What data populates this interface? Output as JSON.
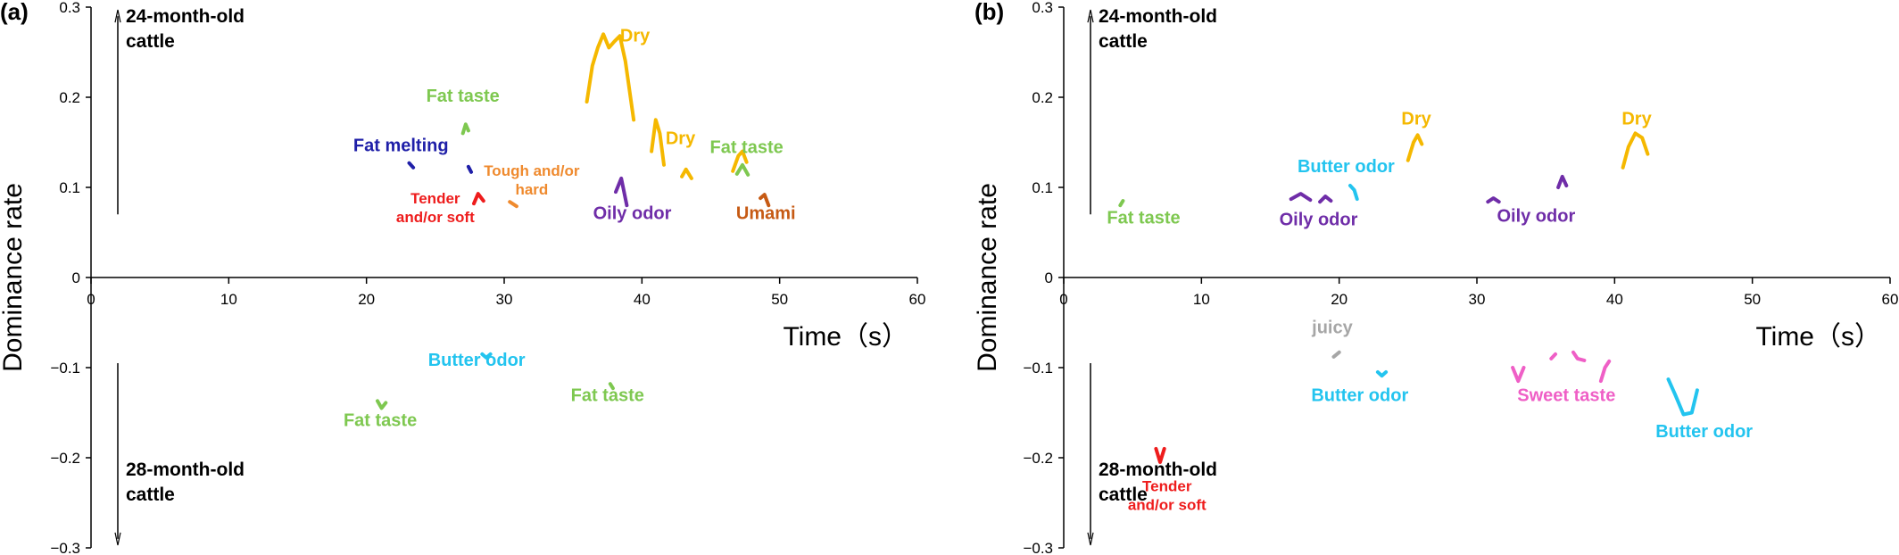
{
  "chart_data": [
    {
      "type": "line",
      "panel_label": "(a)",
      "xlabel": "Time（s）",
      "ylabel": "Dominance rate",
      "xlim": [
        0,
        60
      ],
      "ylim": [
        -0.3,
        0.3
      ],
      "x_ticks": [
        0,
        10,
        20,
        30,
        40,
        50,
        60
      ],
      "y_ticks": [
        0.3,
        0.2,
        0.1,
        0,
        -0.1,
        -0.2,
        -0.3
      ],
      "y_tick_labels": [
        "0.3",
        "0.2",
        "0.1",
        "0",
        "−0.1",
        "−0.2",
        "−0.3"
      ],
      "region_labels": [
        {
          "text": "24-month-old\ncattle",
          "side": "upper"
        },
        {
          "text": "28-month-old\ncattle",
          "side": "lower"
        }
      ],
      "series": [
        {
          "name": "Dry",
          "color": "#f5b800",
          "points": [
            [
              36,
              0.195
            ],
            [
              36.4,
              0.235
            ],
            [
              36.8,
              0.255
            ],
            [
              37.2,
              0.27
            ],
            [
              37.6,
              0.255
            ],
            [
              38,
              0.262
            ],
            [
              38.4,
              0.268
            ],
            [
              38.8,
              0.24
            ],
            [
              39.4,
              0.175
            ]
          ],
          "label": {
            "x": 39.5,
            "y": 0.262
          }
        },
        {
          "name": "Dry",
          "color": "#f5b800",
          "points": [
            [
              40.7,
              0.14
            ],
            [
              41,
              0.175
            ],
            [
              41.3,
              0.16
            ],
            [
              41.6,
              0.125
            ]
          ],
          "label": {
            "x": 42.8,
            "y": 0.148
          }
        },
        {
          "name": "",
          "color": "#f5b800",
          "points": [
            [
              42.9,
              0.112
            ],
            [
              43.2,
              0.12
            ],
            [
              43.6,
              0.11
            ]
          ],
          "label": null
        },
        {
          "name": "",
          "color": "#f5b800",
          "points": [
            [
              46.6,
              0.118
            ],
            [
              47,
              0.135
            ],
            [
              47.3,
              0.14
            ],
            [
              47.6,
              0.128
            ]
          ],
          "label": null
        },
        {
          "name": "Fat taste",
          "color": "#7ec850",
          "points": [
            [
              46.9,
              0.115
            ],
            [
              47.3,
              0.125
            ],
            [
              47.7,
              0.114
            ]
          ],
          "label": {
            "x": 47.6,
            "y": 0.138
          }
        },
        {
          "name": "Fat taste",
          "color": "#7ec850",
          "points": [
            [
              27,
              0.16
            ],
            [
              27.2,
              0.17
            ],
            [
              27.4,
              0.163
            ]
          ],
          "label": {
            "x": 27,
            "y": 0.195
          }
        },
        {
          "name": "Fat melting",
          "color": "#1f1fa8",
          "points": [
            [
              23.1,
              0.127
            ],
            [
              23.4,
              0.122
            ]
          ],
          "label": {
            "x": 22.5,
            "y": 0.14
          }
        },
        {
          "name": "",
          "color": "#1f1fa8",
          "points": [
            [
              27.4,
              0.123
            ],
            [
              27.6,
              0.117
            ]
          ],
          "label": null
        },
        {
          "name": "Tough and/or\nhard",
          "color": "#ef8a2e",
          "points": [
            [
              30.4,
              0.084
            ],
            [
              30.9,
              0.079
            ]
          ],
          "label": {
            "x": 32,
            "y": 0.113
          }
        },
        {
          "name": "Tender\nand/or soft",
          "color": "#ee1c1c",
          "points": [
            [
              27.8,
              0.082
            ],
            [
              28.1,
              0.093
            ],
            [
              28.5,
              0.085
            ]
          ],
          "label": {
            "x": 25,
            "y": 0.082
          }
        },
        {
          "name": "Oily odor",
          "color": "#6f2da8",
          "points": [
            [
              38.1,
              0.095
            ],
            [
              38.5,
              0.11
            ],
            [
              38.9,
              0.08
            ]
          ],
          "label": {
            "x": 39.3,
            "y": 0.065
          }
        },
        {
          "name": "Umami",
          "color": "#c65a14",
          "points": [
            [
              48.6,
              0.088
            ],
            [
              48.9,
              0.092
            ],
            [
              49.2,
              0.08
            ]
          ],
          "label": {
            "x": 49,
            "y": 0.065
          }
        },
        {
          "name": "Butter odor",
          "color": "#23c4ef",
          "points": [
            [
              28.4,
              -0.085
            ],
            [
              28.7,
              -0.089
            ],
            [
              29,
              -0.085
            ]
          ],
          "label": {
            "x": 28,
            "y": -0.098
          }
        },
        {
          "name": "Fat taste",
          "color": "#7ec850",
          "points": [
            [
              20.8,
              -0.137
            ],
            [
              21.1,
              -0.145
            ],
            [
              21.4,
              -0.139
            ]
          ],
          "label": {
            "x": 21,
            "y": -0.165
          }
        },
        {
          "name": "Fat taste",
          "color": "#7ec850",
          "points": [
            [
              37.7,
              -0.118
            ],
            [
              37.9,
              -0.123
            ]
          ],
          "label": {
            "x": 37.5,
            "y": -0.137
          }
        }
      ]
    },
    {
      "type": "line",
      "panel_label": "(b)",
      "xlabel": "Time（s）",
      "ylabel": "Dominance rate",
      "xlim": [
        0,
        60
      ],
      "ylim": [
        -0.3,
        0.3
      ],
      "x_ticks": [
        0,
        10,
        20,
        30,
        40,
        50,
        60
      ],
      "y_ticks": [
        0.3,
        0.2,
        0.1,
        0,
        -0.1,
        -0.2,
        -0.3
      ],
      "y_tick_labels": [
        "0.3",
        "0.2",
        "0.1",
        "0",
        "−0.1",
        "−0.2",
        "−0.3"
      ],
      "region_labels": [
        {
          "text": "24-month-old\ncattle",
          "side": "upper"
        },
        {
          "text": "28-month-old\ncattle",
          "side": "lower"
        }
      ],
      "series": [
        {
          "name": "Dry",
          "color": "#f5b800",
          "points": [
            [
              25,
              0.13
            ],
            [
              25.4,
              0.15
            ],
            [
              25.7,
              0.158
            ],
            [
              26,
              0.148
            ]
          ],
          "label": {
            "x": 25.6,
            "y": 0.17
          }
        },
        {
          "name": "Dry",
          "color": "#f5b800",
          "points": [
            [
              40.6,
              0.122
            ],
            [
              41,
              0.145
            ],
            [
              41.5,
              0.16
            ],
            [
              42,
              0.155
            ],
            [
              42.4,
              0.137
            ]
          ],
          "label": {
            "x": 41.6,
            "y": 0.17
          }
        },
        {
          "name": "Butter odor",
          "color": "#23c4ef",
          "points": [
            [
              20.8,
              0.102
            ],
            [
              21.1,
              0.097
            ],
            [
              21.3,
              0.087
            ]
          ],
          "label": {
            "x": 20.5,
            "y": 0.117
          }
        },
        {
          "name": "Fat taste",
          "color": "#7ec850",
          "points": [
            [
              4.1,
              0.08
            ],
            [
              4.3,
              0.085
            ]
          ],
          "label": {
            "x": 5.8,
            "y": 0.06
          }
        },
        {
          "name": "Oily odor",
          "color": "#6f2da8",
          "points": [
            [
              16.5,
              0.087
            ],
            [
              17.2,
              0.093
            ],
            [
              17.9,
              0.086
            ]
          ],
          "label": {
            "x": 18.5,
            "y": 0.058
          }
        },
        {
          "name": "",
          "color": "#6f2da8",
          "points": [
            [
              18.6,
              0.084
            ],
            [
              19,
              0.09
            ],
            [
              19.4,
              0.085
            ]
          ],
          "label": null
        },
        {
          "name": "Oily odor",
          "color": "#6f2da8",
          "points": [
            [
              30.8,
              0.084
            ],
            [
              31.2,
              0.088
            ],
            [
              31.6,
              0.084
            ]
          ],
          "label": {
            "x": 34.3,
            "y": 0.062
          }
        },
        {
          "name": "",
          "color": "#6f2da8",
          "points": [
            [
              35.9,
              0.1
            ],
            [
              36.2,
              0.112
            ],
            [
              36.5,
              0.102
            ]
          ],
          "label": null
        },
        {
          "name": "juicy",
          "color": "#a6a6a6",
          "points": [
            [
              19.6,
              -0.088
            ],
            [
              20,
              -0.083
            ]
          ],
          "label": {
            "x": 19.5,
            "y": -0.062
          }
        },
        {
          "name": "Butter odor",
          "color": "#23c4ef",
          "points": [
            [
              22.8,
              -0.105
            ],
            [
              23.1,
              -0.109
            ],
            [
              23.4,
              -0.105
            ]
          ],
          "label": {
            "x": 21.5,
            "y": -0.137
          }
        },
        {
          "name": "Sweet taste",
          "color": "#ef5fc6",
          "points": [
            [
              32.6,
              -0.1
            ],
            [
              33,
              -0.115
            ],
            [
              33.4,
              -0.1
            ]
          ],
          "label": {
            "x": 36.5,
            "y": -0.137
          }
        },
        {
          "name": "",
          "color": "#ef5fc6",
          "points": [
            [
              35.4,
              -0.09
            ],
            [
              35.7,
              -0.085
            ]
          ],
          "label": null
        },
        {
          "name": "",
          "color": "#ef5fc6",
          "points": [
            [
              37,
              -0.083
            ],
            [
              37.3,
              -0.09
            ],
            [
              37.8,
              -0.092
            ]
          ],
          "label": null
        },
        {
          "name": "",
          "color": "#ef5fc6",
          "points": [
            [
              39,
              -0.115
            ],
            [
              39.3,
              -0.1
            ],
            [
              39.6,
              -0.093
            ]
          ],
          "label": null
        },
        {
          "name": "Butter odor",
          "color": "#23c4ef",
          "points": [
            [
              43.9,
              -0.113
            ],
            [
              44.4,
              -0.13
            ],
            [
              45,
              -0.152
            ],
            [
              45.6,
              -0.15
            ],
            [
              46,
              -0.125
            ]
          ],
          "label": {
            "x": 46.5,
            "y": -0.177
          }
        },
        {
          "name": "Tender\nand/or soft",
          "color": "#ee1c1c",
          "points": [
            [
              6.7,
              -0.19
            ],
            [
              7,
              -0.205
            ],
            [
              7.3,
              -0.19
            ]
          ],
          "label": {
            "x": 7.5,
            "y": -0.237
          }
        }
      ]
    }
  ]
}
